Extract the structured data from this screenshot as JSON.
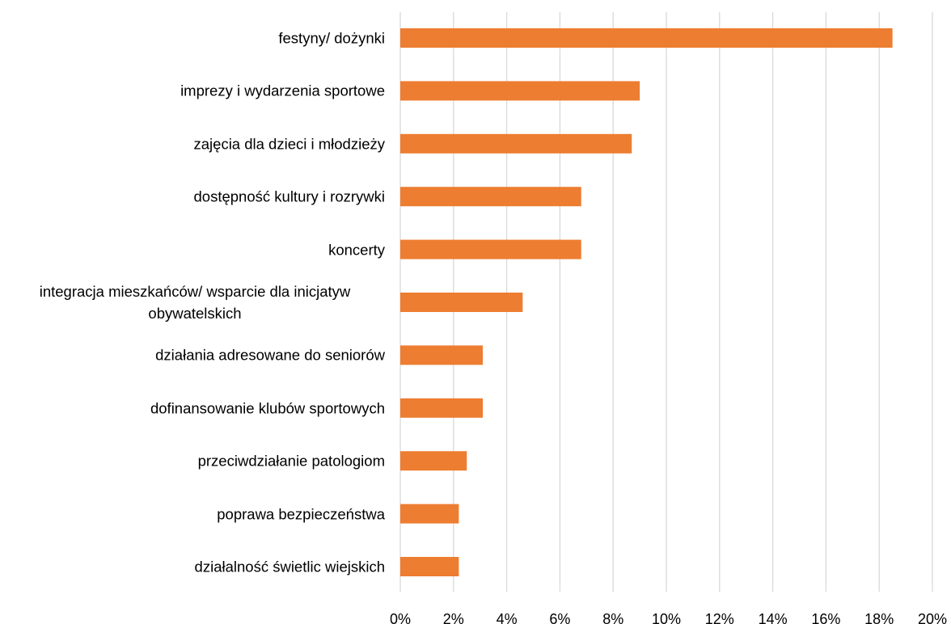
{
  "chart_data": {
    "type": "barh",
    "categories": [
      "festyny/ dożynki",
      "imprezy i wydarzenia sportowe",
      "zajęcia dla dzieci i młodzieży",
      "dostępność kultury i rozrywki",
      "koncerty",
      "integracja mieszkańców/ wsparcie dla inicjatyw obywatelskich",
      "działania adresowane do seniorów",
      "dofinansowanie klubów sportowych",
      "przeciwdziałanie patologiom",
      "poprawa bezpieczeństwa",
      "działalność świetlic wiejskich"
    ],
    "values": [
      18.5,
      9.0,
      8.7,
      6.8,
      6.8,
      4.6,
      3.1,
      3.1,
      2.5,
      2.2,
      2.2
    ],
    "color": "#ed7d31",
    "xlim": [
      0,
      20
    ],
    "xticks": [
      {
        "value": 0,
        "label": "0%"
      },
      {
        "value": 2,
        "label": "2%"
      },
      {
        "value": 4,
        "label": "4%"
      },
      {
        "value": 6,
        "label": "6%"
      },
      {
        "value": 8,
        "label": "8%"
      },
      {
        "value": 10,
        "label": "10%"
      },
      {
        "value": 12,
        "label": "12%"
      },
      {
        "value": 14,
        "label": "14%"
      },
      {
        "value": 16,
        "label": "16%"
      },
      {
        "value": 18,
        "label": "18%"
      },
      {
        "value": 20,
        "label": "20%"
      }
    ],
    "grid": true
  }
}
